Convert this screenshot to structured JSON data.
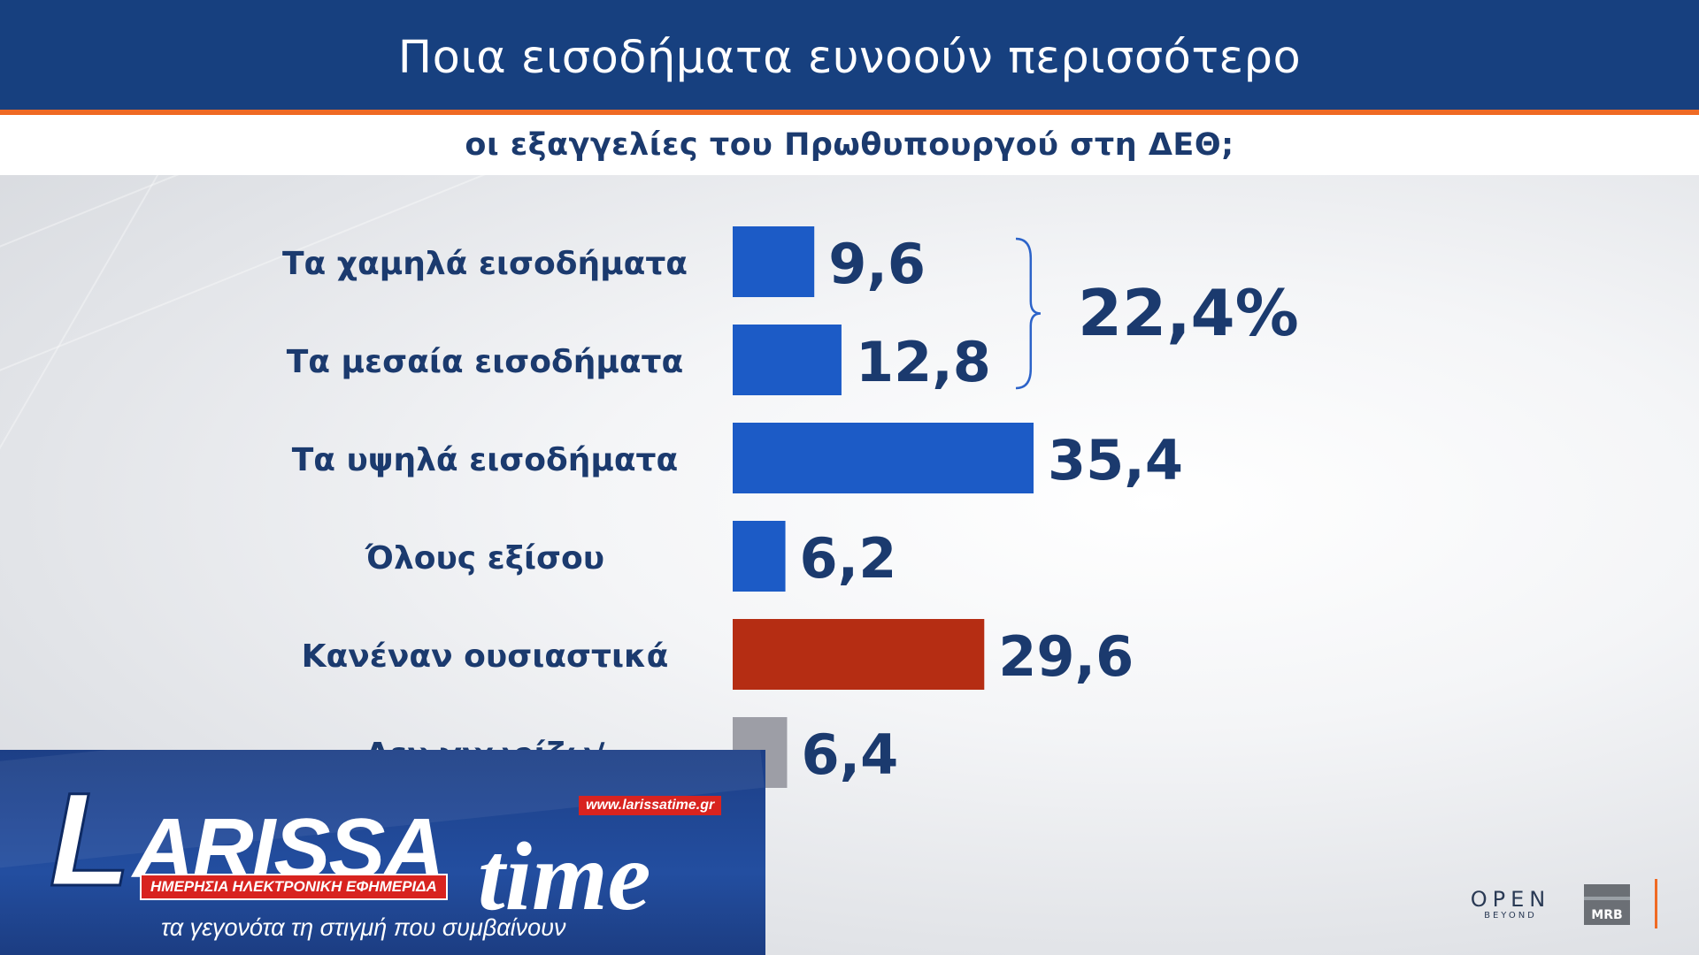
{
  "header": {
    "title": "Ποια εισοδήματα ευνοούν περισσότερο",
    "subtitle": "οι εξαγγελίες του Πρωθυπουργού στη ΔΕΘ;"
  },
  "chart_data": {
    "type": "bar",
    "orientation": "horizontal",
    "categories": [
      "Τα χαμηλά εισοδήματα",
      "Τα μεσαία εισοδήματα",
      "Τα υψηλά εισοδήματα",
      "Όλους εξίσου",
      "Κανέναν ουσιαστικά",
      "Δεν γνωρίζω/"
    ],
    "values": [
      9.6,
      12.8,
      35.4,
      6.2,
      29.6,
      6.4
    ],
    "value_labels": [
      "9,6",
      "12,8",
      "35,4",
      "6,2",
      "29,6",
      "6,4"
    ],
    "bar_colors": [
      "#1c5bc6",
      "#1c5bc6",
      "#1c5bc6",
      "#1c5bc6",
      "#b52d13",
      "#9d9ea6"
    ],
    "grouping": {
      "categories": [
        "Τα χαμηλά εισοδήματα",
        "Τα μεσαία εισοδήματα"
      ],
      "label": "22,4%"
    },
    "xlim": [
      0,
      35.4
    ],
    "grid": false,
    "legend": "none"
  },
  "colors": {
    "header_bg": "#17407f",
    "accent": "#ef6a24",
    "text_dark": "#1b3a6e",
    "bar_blue": "#1c5bc6",
    "bar_red": "#b52d13",
    "bar_grey": "#9d9ea6"
  },
  "watermark": {
    "logo_text": "LARISSA time",
    "url": "www.larissatime.gr",
    "tagline": "ΗΜΕΡΗΣΙΑ ΗΛΕΚΤΡΟΝΙΚΗ ΕΦΗΜΕΡΙΔΑ",
    "slogan": "τα γεγονότα τη στιγμή που συμβαίνουν"
  },
  "logos": {
    "open": "OPEN",
    "open_sub": "BEYOND",
    "mrb": "MRB"
  }
}
